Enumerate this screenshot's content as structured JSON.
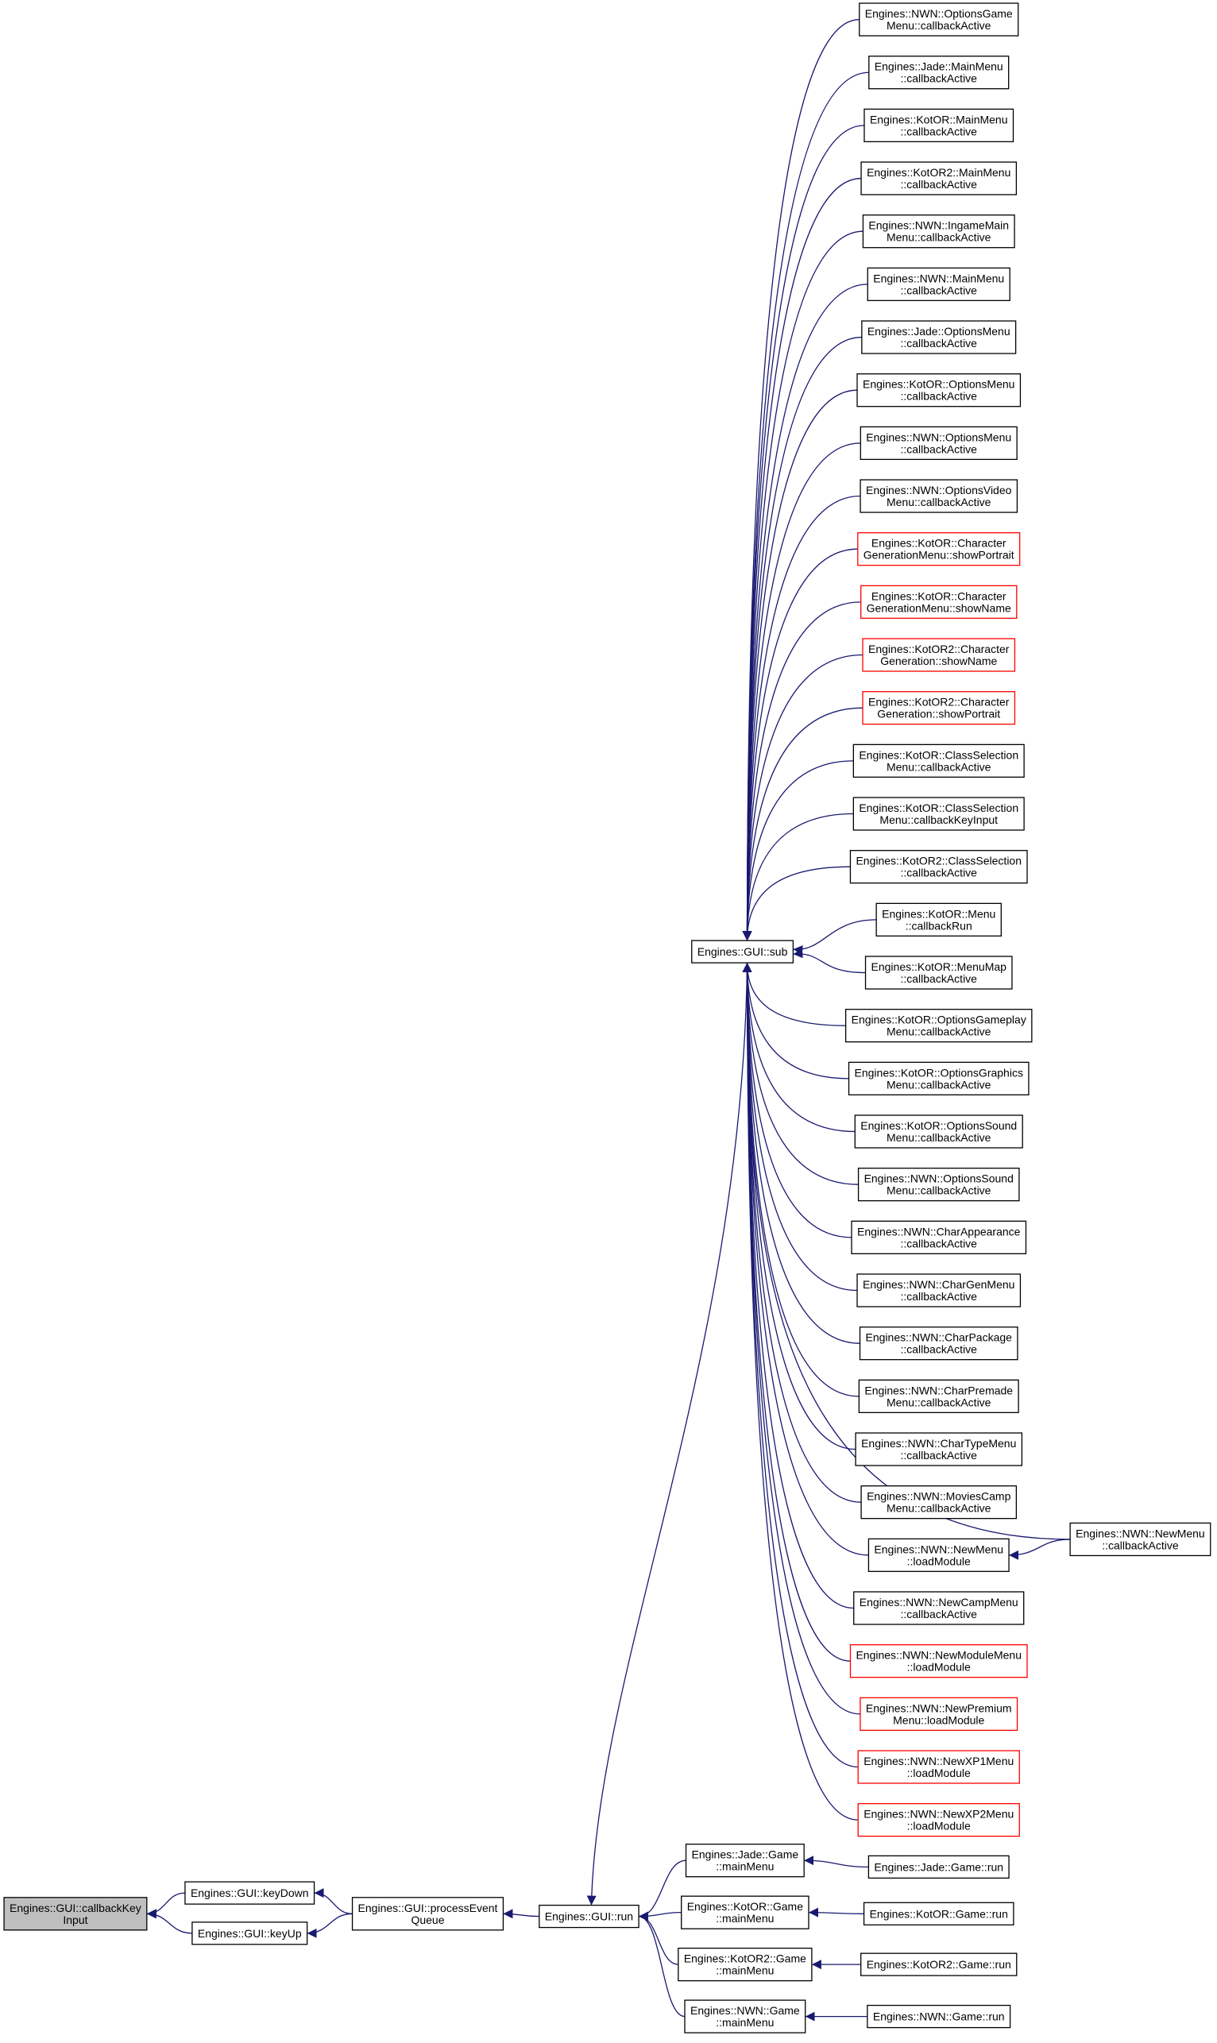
{
  "nodes": [
    {
      "lines": [
        "Engines::GUI::callbackKey",
        "Input"
      ],
      "border": "#000000",
      "fill": "#bfbfbf"
    },
    {
      "lines": [
        "Engines::GUI::keyDown"
      ],
      "border": "#000000"
    },
    {
      "lines": [
        "Engines::GUI::keyUp"
      ],
      "border": "#000000"
    },
    {
      "lines": [
        "Engines::GUI::processEvent",
        "Queue"
      ],
      "border": "#000000"
    },
    {
      "lines": [
        "Engines::GUI::run"
      ],
      "border": "#000000"
    },
    {
      "lines": [
        "Engines::GUI::sub"
      ],
      "border": "#000000"
    },
    {
      "lines": [
        "Engines::Jade::Game",
        "::mainMenu"
      ],
      "border": "#000000"
    },
    {
      "lines": [
        "Engines::KotOR::Game",
        "::mainMenu"
      ],
      "border": "#000000"
    },
    {
      "lines": [
        "Engines::KotOR2::Game",
        "::mainMenu"
      ],
      "border": "#000000"
    },
    {
      "lines": [
        "Engines::NWN::Game",
        "::mainMenu"
      ],
      "border": "#000000"
    },
    {
      "lines": [
        "Engines::Jade::Game::run"
      ],
      "border": "#000000"
    },
    {
      "lines": [
        "Engines::KotOR::Game::run"
      ],
      "border": "#000000"
    },
    {
      "lines": [
        "Engines::KotOR2::Game::run"
      ],
      "border": "#000000"
    },
    {
      "lines": [
        "Engines::NWN::Game::run"
      ],
      "border": "#000000"
    },
    {
      "lines": [
        "Engines::NWN::OptionsGame",
        "Menu::callbackActive"
      ],
      "border": "#000000"
    },
    {
      "lines": [
        "Engines::Jade::MainMenu",
        "::callbackActive"
      ],
      "border": "#000000"
    },
    {
      "lines": [
        "Engines::KotOR::MainMenu",
        "::callbackActive"
      ],
      "border": "#000000"
    },
    {
      "lines": [
        "Engines::KotOR2::MainMenu",
        "::callbackActive"
      ],
      "border": "#000000"
    },
    {
      "lines": [
        "Engines::NWN::IngameMain",
        "Menu::callbackActive"
      ],
      "border": "#000000"
    },
    {
      "lines": [
        "Engines::NWN::MainMenu",
        "::callbackActive"
      ],
      "border": "#000000"
    },
    {
      "lines": [
        "Engines::Jade::OptionsMenu",
        "::callbackActive"
      ],
      "border": "#000000"
    },
    {
      "lines": [
        "Engines::KotOR::OptionsMenu",
        "::callbackActive"
      ],
      "border": "#000000"
    },
    {
      "lines": [
        "Engines::NWN::OptionsMenu",
        "::callbackActive"
      ],
      "border": "#000000"
    },
    {
      "lines": [
        "Engines::NWN::OptionsVideo",
        "Menu::callbackActive"
      ],
      "border": "#000000"
    },
    {
      "lines": [
        "Engines::KotOR::Character",
        "GenerationMenu::showPortrait"
      ],
      "border": "#ff0000"
    },
    {
      "lines": [
        "Engines::KotOR::Character",
        "GenerationMenu::showName"
      ],
      "border": "#ff0000"
    },
    {
      "lines": [
        "Engines::KotOR2::Character",
        "Generation::showName"
      ],
      "border": "#ff0000"
    },
    {
      "lines": [
        "Engines::KotOR2::Character",
        "Generation::showPortrait"
      ],
      "border": "#ff0000"
    },
    {
      "lines": [
        "Engines::KotOR::ClassSelection",
        "Menu::callbackActive"
      ],
      "border": "#000000"
    },
    {
      "lines": [
        "Engines::KotOR::ClassSelection",
        "Menu::callbackKeyInput"
      ],
      "border": "#000000"
    },
    {
      "lines": [
        "Engines::KotOR2::ClassSelection",
        "::callbackActive"
      ],
      "border": "#000000"
    },
    {
      "lines": [
        "Engines::KotOR::Menu",
        "::callbackRun"
      ],
      "border": "#000000"
    },
    {
      "lines": [
        "Engines::KotOR::MenuMap",
        "::callbackActive"
      ],
      "border": "#000000"
    },
    {
      "lines": [
        "Engines::KotOR::OptionsGameplay",
        "Menu::callbackActive"
      ],
      "border": "#000000"
    },
    {
      "lines": [
        "Engines::KotOR::OptionsGraphics",
        "Menu::callbackActive"
      ],
      "border": "#000000"
    },
    {
      "lines": [
        "Engines::KotOR::OptionsSound",
        "Menu::callbackActive"
      ],
      "border": "#000000"
    },
    {
      "lines": [
        "Engines::NWN::OptionsSound",
        "Menu::callbackActive"
      ],
      "border": "#000000"
    },
    {
      "lines": [
        "Engines::NWN::CharAppearance",
        "::callbackActive"
      ],
      "border": "#000000"
    },
    {
      "lines": [
        "Engines::NWN::CharGenMenu",
        "::callbackActive"
      ],
      "border": "#000000"
    },
    {
      "lines": [
        "Engines::NWN::CharPackage",
        "::callbackActive"
      ],
      "border": "#000000"
    },
    {
      "lines": [
        "Engines::NWN::CharPremade",
        "Menu::callbackActive"
      ],
      "border": "#000000"
    },
    {
      "lines": [
        "Engines::NWN::CharTypeMenu",
        "::callbackActive"
      ],
      "border": "#000000"
    },
    {
      "lines": [
        "Engines::NWN::MoviesCamp",
        "Menu::callbackActive"
      ],
      "border": "#000000"
    },
    {
      "lines": [
        "Engines::NWN::NewMenu",
        "::loadModule"
      ],
      "border": "#000000"
    },
    {
      "lines": [
        "Engines::NWN::NewCampMenu",
        "::callbackActive"
      ],
      "border": "#000000"
    },
    {
      "lines": [
        "Engines::NWN::NewModuleMenu",
        "::loadModule"
      ],
      "border": "#ff0000"
    },
    {
      "lines": [
        "Engines::NWN::NewPremium",
        "Menu::loadModule"
      ],
      "border": "#ff0000"
    },
    {
      "lines": [
        "Engines::NWN::NewXP1Menu",
        "::loadModule"
      ],
      "border": "#ff0000"
    },
    {
      "lines": [
        "Engines::NWN::NewXP2Menu",
        "::loadModule"
      ],
      "border": "#ff0000"
    },
    {
      "lines": [
        "Engines::NWN::NewMenu",
        "::callbackActive"
      ],
      "border": "#000000"
    }
  ]
}
